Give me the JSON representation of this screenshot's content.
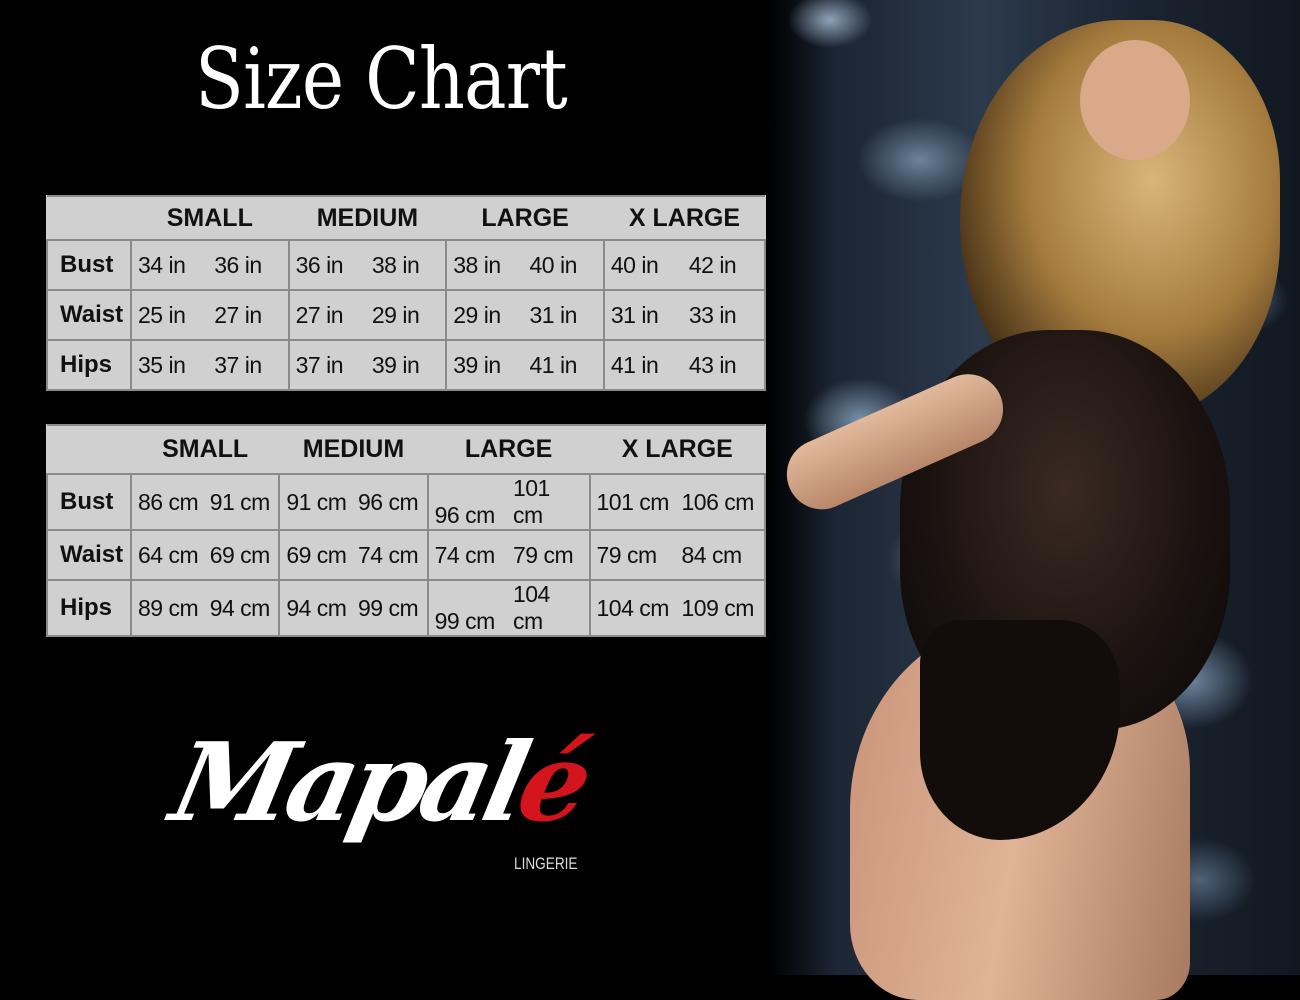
{
  "title": "Size Chart",
  "tables": [
    {
      "headers": [
        "",
        "SMALL",
        "MEDIUM",
        "LARGE",
        "X LARGE"
      ],
      "rows": [
        {
          "label": "Bust",
          "values": [
            "34 in",
            "36 in",
            "36 in",
            "38 in",
            "38 in",
            "40 in",
            "40 in",
            "42 in"
          ]
        },
        {
          "label": "Waist",
          "values": [
            "25 in",
            "27 in",
            "27 in",
            "29 in",
            "29 in",
            "31 in",
            "31 in",
            "33 in"
          ]
        },
        {
          "label": "Hips",
          "values": [
            "35 in",
            "37 in",
            "37 in",
            "39 in",
            "39 in",
            "41 in",
            "41 in",
            "43 in"
          ]
        }
      ]
    },
    {
      "headers": [
        "",
        "SMALL",
        "MEDIUM",
        "LARGE",
        "X LARGE"
      ],
      "rows": [
        {
          "label": "Bust",
          "values": [
            "86 cm",
            "91 cm",
            "91 cm",
            "96 cm",
            "96 cm",
            "101 cm",
            "101 cm",
            "106 cm"
          ]
        },
        {
          "label": "Waist",
          "values": [
            "64 cm",
            "69 cm",
            "69 cm",
            "74 cm",
            "74 cm",
            "79  cm",
            "79 cm",
            "84 cm"
          ]
        },
        {
          "label": "Hips",
          "values": [
            "89 cm",
            "94 cm",
            "94 cm",
            "99 cm",
            "99 cm",
            "104 cm",
            "104 cm",
            "109 cm"
          ]
        }
      ]
    }
  ],
  "logo": {
    "text_main": "Mapal",
    "text_accent": "é",
    "subtitle": "LINGERIE",
    "accent_color": "#d4141c"
  },
  "colors": {
    "background": "#000000",
    "table_bg": "#d0d0d0",
    "table_border": "#8a8a8a"
  }
}
